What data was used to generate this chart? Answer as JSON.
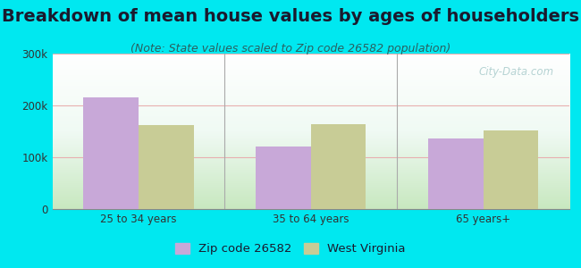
{
  "title": "Breakdown of mean house values by ages of householders",
  "subtitle": "(Note: State values scaled to Zip code 26582 population)",
  "categories": [
    "25 to 34 years",
    "35 to 64 years",
    "65 years+"
  ],
  "zip_values": [
    215000,
    120000,
    137000
  ],
  "state_values": [
    162000,
    163000,
    152000
  ],
  "zip_color": "#c8a8d8",
  "state_color": "#c8cc96",
  "background_color": "#00e8f0",
  "ylim": [
    0,
    300000
  ],
  "yticks": [
    0,
    100000,
    200000,
    300000
  ],
  "ytick_labels": [
    "0",
    "100k",
    "200k",
    "300k"
  ],
  "title_fontsize": 14,
  "subtitle_fontsize": 9,
  "legend_labels": [
    "Zip code 26582",
    "West Virginia"
  ],
  "watermark": "City-Data.com",
  "bar_width": 0.32,
  "group_positions": [
    1,
    2,
    3
  ]
}
